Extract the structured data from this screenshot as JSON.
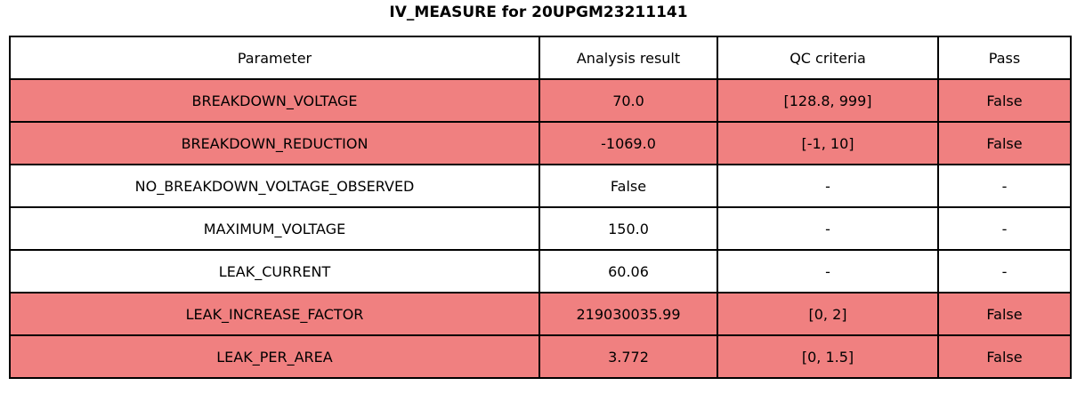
{
  "title": "IV_MEASURE for 20UPGM23211141",
  "chart_data": {
    "type": "table",
    "title": "IV_MEASURE for 20UPGM23211141",
    "columns": [
      "Parameter",
      "Analysis result",
      "QC criteria",
      "Pass"
    ],
    "rows": [
      {
        "parameter": "BREAKDOWN_VOLTAGE",
        "result": "70.0",
        "criteria": "[128.8, 999]",
        "pass": "False",
        "failed": true
      },
      {
        "parameter": "BREAKDOWN_REDUCTION",
        "result": "-1069.0",
        "criteria": "[-1, 10]",
        "pass": "False",
        "failed": true
      },
      {
        "parameter": "NO_BREAKDOWN_VOLTAGE_OBSERVED",
        "result": "False",
        "criteria": "-",
        "pass": "-",
        "failed": false
      },
      {
        "parameter": "MAXIMUM_VOLTAGE",
        "result": "150.0",
        "criteria": "-",
        "pass": "-",
        "failed": false
      },
      {
        "parameter": "LEAK_CURRENT",
        "result": "60.06",
        "criteria": "-",
        "pass": "-",
        "failed": false
      },
      {
        "parameter": "LEAK_INCREASE_FACTOR",
        "result": "219030035.99",
        "criteria": "[0, 2]",
        "pass": "False",
        "failed": true
      },
      {
        "parameter": "LEAK_PER_AREA",
        "result": "3.772",
        "criteria": "[0, 1.5]",
        "pass": "False",
        "failed": true
      }
    ],
    "legend_position": "none",
    "grid": true
  },
  "colors": {
    "fail_row_bg": "#f08080",
    "pass_row_bg": "#ffffff",
    "border": "#000000",
    "text": "#000000"
  }
}
